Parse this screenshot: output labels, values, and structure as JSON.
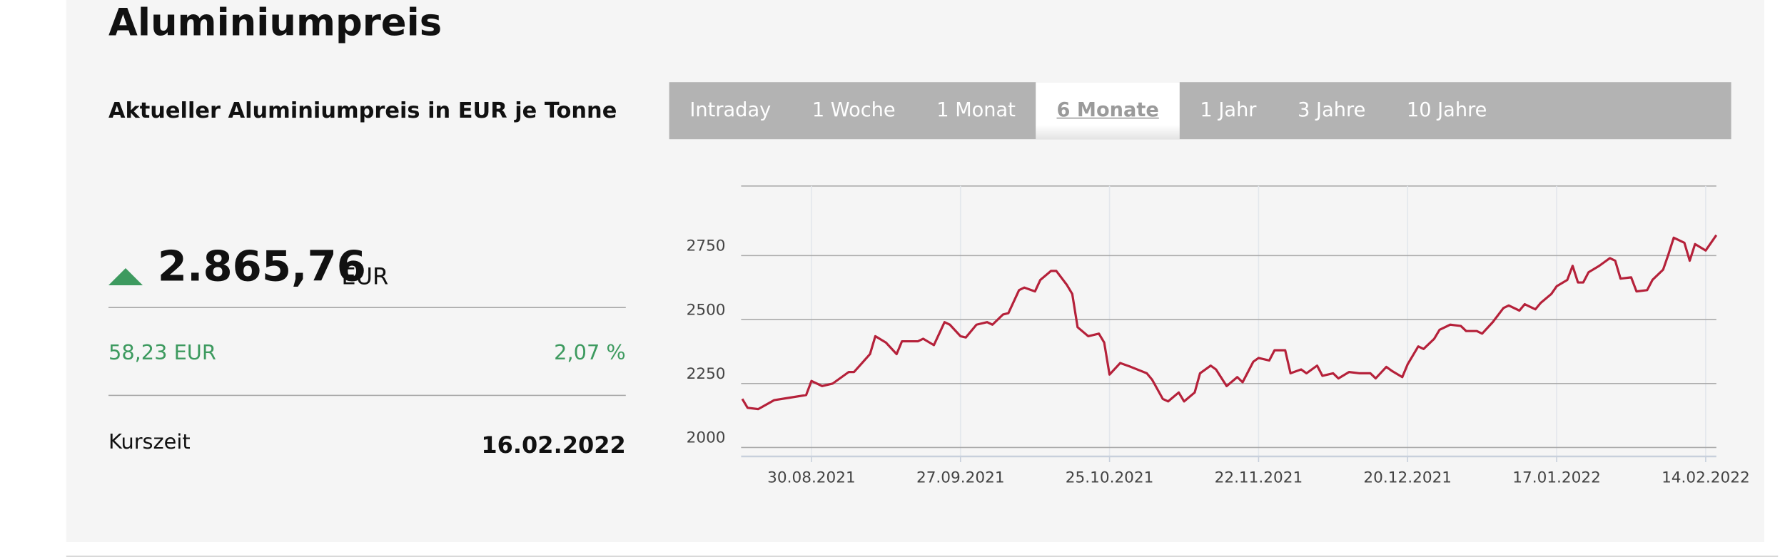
{
  "header": {
    "title": "Aluminiumpreis",
    "subtitle": "Aktueller Aluminiumpreis in EUR je Tonne"
  },
  "tabs": [
    "Intraday",
    "1 Woche",
    "1 Monat",
    "6 Monate",
    "1 Jahr",
    "3 Jahre",
    "10 Jahre"
  ],
  "active_tab": 3,
  "quote": {
    "price": "2.865,76",
    "currency": "EUR",
    "change": "58,23 EUR",
    "change_percent": "2,07 %",
    "time_label": "Kurszeit",
    "time": "16.02.2022"
  },
  "chart_data": {
    "type": "line",
    "x": [
      "17.08.2021",
      "18.08.2021",
      "20.08.2021",
      "23.08.2021",
      "26.08.2021",
      "29.08.2021",
      "30.08.2021",
      "01.09.2021",
      "03.09.2021",
      "06.09.2021",
      "07.09.2021",
      "10.09.2021",
      "11.09.2021",
      "13.09.2021",
      "15.09.2021",
      "16.09.2021",
      "19.09.2021",
      "20.09.2021",
      "22.09.2021",
      "24.09.2021",
      "25.09.2021",
      "27.09.2021",
      "28.09.2021",
      "30.09.2021",
      "02.10.2021",
      "03.10.2021",
      "05.10.2021",
      "06.10.2021",
      "08.10.2021",
      "09.10.2021",
      "11.10.2021",
      "12.10.2021",
      "14.10.2021",
      "15.10.2021",
      "17.10.2021",
      "18.10.2021",
      "19.10.2021",
      "21.10.2021",
      "23.10.2021",
      "24.10.2021",
      "25.10.2021",
      "27.10.2021",
      "29.10.2021",
      "01.11.2021",
      "02.11.2021",
      "04.11.2021",
      "05.11.2021",
      "07.11.2021",
      "08.11.2021",
      "10.11.2021",
      "11.11.2021",
      "13.11.2021",
      "14.11.2021",
      "16.11.2021",
      "18.11.2021",
      "19.11.2021",
      "21.11.2021",
      "22.11.2021",
      "24.11.2021",
      "25.11.2021",
      "27.11.2021",
      "28.11.2021",
      "30.11.2021",
      "01.12.2021",
      "03.12.2021",
      "04.12.2021",
      "06.12.2021",
      "07.12.2021",
      "09.12.2021",
      "11.12.2021",
      "13.12.2021",
      "14.12.2021",
      "16.12.2021",
      "17.12.2021",
      "19.12.2021",
      "20.12.2021",
      "22.12.2021",
      "23.12.2021",
      "25.12.2021",
      "26.12.2021",
      "28.12.2021",
      "30.12.2021",
      "31.12.2021",
      "02.01.2022",
      "03.01.2022",
      "05.01.2022",
      "07.01.2022",
      "08.01.2022",
      "10.01.2022",
      "11.01.2022",
      "13.01.2022",
      "14.01.2022",
      "16.01.2022",
      "17.01.2022",
      "19.01.2022",
      "20.01.2022",
      "21.01.2022",
      "22.01.2022",
      "23.01.2022",
      "25.01.2022",
      "27.01.2022",
      "28.01.2022",
      "29.01.2022",
      "31.01.2022",
      "01.02.2022",
      "03.02.2022",
      "04.02.2022",
      "06.02.2022",
      "07.02.2022",
      "08.02.2022",
      "10.02.2022",
      "11.02.2022",
      "12.02.2022",
      "14.02.2022",
      "16.02.2022"
    ],
    "values": [
      2190,
      2155,
      2150,
      2185,
      2195,
      2205,
      2260,
      2240,
      2250,
      2295,
      2295,
      2365,
      2435,
      2410,
      2365,
      2415,
      2415,
      2425,
      2400,
      2490,
      2480,
      2435,
      2430,
      2480,
      2490,
      2480,
      2520,
      2525,
      2615,
      2625,
      2610,
      2655,
      2690,
      2690,
      2635,
      2600,
      2470,
      2435,
      2445,
      2410,
      2285,
      2330,
      2315,
      2290,
      2265,
      2190,
      2180,
      2215,
      2180,
      2215,
      2290,
      2320,
      2305,
      2240,
      2275,
      2255,
      2335,
      2350,
      2340,
      2380,
      2380,
      2290,
      2305,
      2290,
      2320,
      2280,
      2290,
      2270,
      2295,
      2290,
      2290,
      2270,
      2315,
      2300,
      2275,
      2325,
      2395,
      2385,
      2425,
      2460,
      2480,
      2475,
      2455,
      2455,
      2445,
      2490,
      2545,
      2555,
      2535,
      2560,
      2540,
      2565,
      2600,
      2630,
      2655,
      2710,
      2645,
      2645,
      2685,
      2710,
      2740,
      2730,
      2660,
      2665,
      2610,
      2615,
      2655,
      2695,
      2755,
      2820,
      2800,
      2730,
      2795,
      2770,
      2830
    ],
    "color": "#b5213a",
    "xlim": [
      "17.08.2021",
      "16.02.2022"
    ],
    "xticks": [
      "30.08.2021",
      "27.09.2021",
      "25.10.2021",
      "22.11.2021",
      "20.12.2021",
      "17.01.2022",
      "14.02.2022"
    ],
    "ylim": [
      1965,
      3022
    ],
    "yticks": [
      2000,
      2250,
      2500,
      2750
    ],
    "grid": true
  }
}
